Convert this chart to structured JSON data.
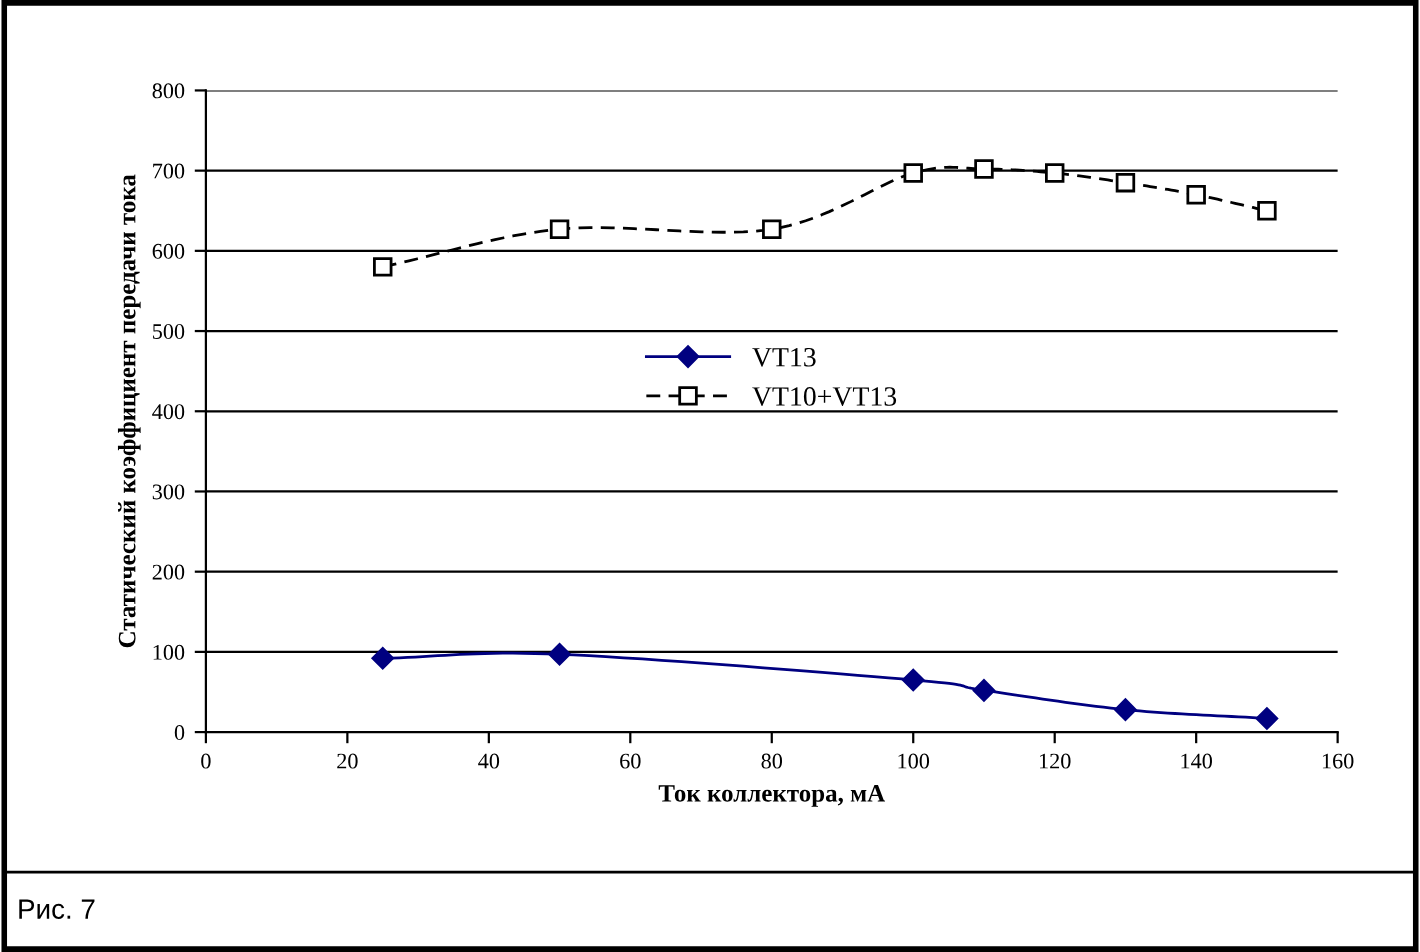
{
  "chart_data": {
    "type": "line",
    "xlabel": "Ток коллектора, мА",
    "ylabel": "Статический коэффициент передачи тока",
    "xlim": [
      0,
      160
    ],
    "xticks": [
      0,
      20,
      40,
      60,
      80,
      100,
      120,
      140,
      160
    ],
    "ylim": [
      0,
      800
    ],
    "yticks": [
      0,
      100,
      200,
      300,
      400,
      500,
      600,
      700,
      800
    ],
    "grid": "y",
    "legend": "center",
    "annotations": [
      "Рис. 7"
    ],
    "series": [
      {
        "name": "VT13",
        "color": "#000080",
        "x": [
          25,
          50,
          100,
          110,
          130,
          150
        ],
        "values": [
          92,
          97,
          65,
          52,
          28,
          17
        ],
        "marker": "diamond",
        "line_style": "solid"
      },
      {
        "name": "VT10+VT13",
        "color": "#000000",
        "x": [
          25,
          50,
          80,
          100,
          110,
          120,
          130,
          140,
          150
        ],
        "values": [
          580,
          627,
          627,
          697,
          702,
          697,
          685,
          670,
          650
        ],
        "marker": "square",
        "line_style": "dashed"
      }
    ]
  }
}
